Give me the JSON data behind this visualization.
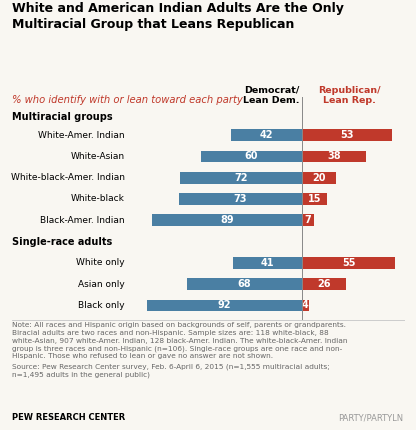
{
  "title": "White and American Indian Adults Are the Only\nMultiracial Group that Leans Republican",
  "subtitle": "% who identify with or lean toward each party",
  "display_labels": [
    "White-Amer. Indian",
    "White-Asian",
    "White-black-Amer. Indian",
    "White-black",
    "Black-Amer. Indian",
    "",
    "White only",
    "Asian only",
    "Black only"
  ],
  "democrat_values": [
    42,
    60,
    72,
    73,
    89,
    null,
    41,
    68,
    92
  ],
  "republican_values": [
    53,
    38,
    20,
    15,
    7,
    null,
    55,
    26,
    4
  ],
  "dem_color": "#4a7fa3",
  "rep_color": "#c0392b",
  "col_header_dem": "Democrat/\nLean Dem.",
  "col_header_rep": "Republican/\nLean Rep.",
  "multiracial_header": "Multiracial groups",
  "single_race_header": "Single-race adults",
  "note_text": "Note: All races and Hispanic origin based on backgrounds of self, parents or grandparents.\nBiracial adults are two races and non-Hispanic. Sample sizes are: 118 white-black, 88\nwhite-Asian, 907 white-Amer. Indian, 128 black-Amer. Indian. The white-black-Amer. Indian\ngroup is three races and non-Hispanic (n=106). Single-race groups are one race and non-\nHispanic. Those who refused to lean or gave no answer are not shown.",
  "source_text": "Source: Pew Research Center survey, Feb. 6-April 6, 2015 (n=1,555 multiracial adults;\nn=1,495 adults in the general public)",
  "left_footer": "PEW RESEARCH CENTER",
  "right_footer": "PARTY/PARTYLN",
  "background_color": "#f9f7f2",
  "bar_height": 0.55
}
